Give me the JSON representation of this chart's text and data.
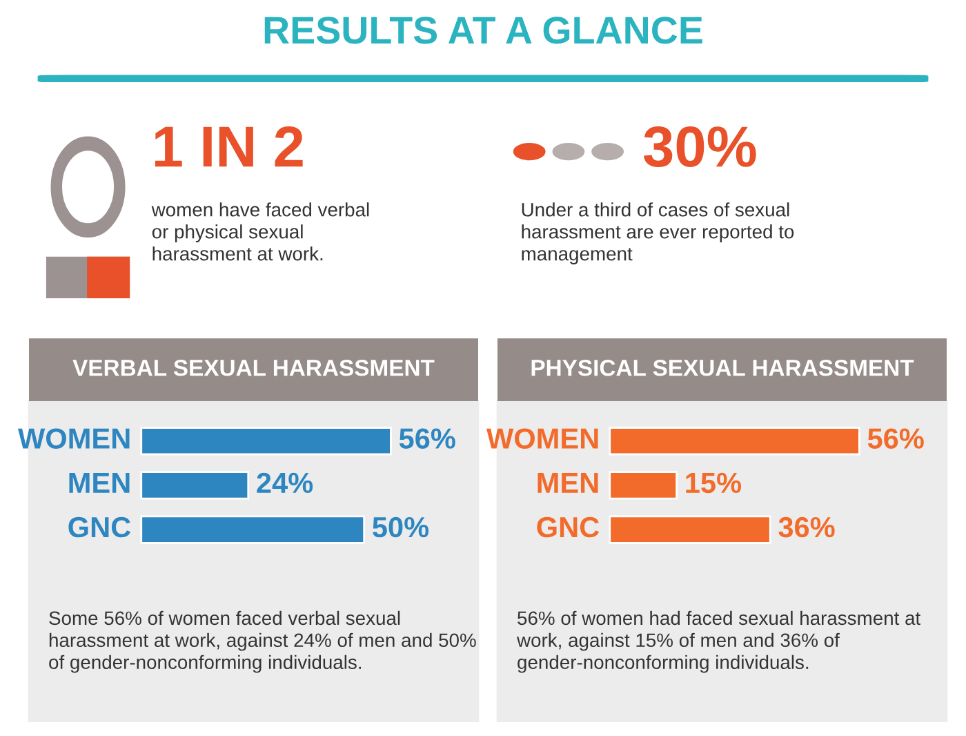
{
  "chart_data": [
    {
      "type": "other",
      "title": "RESULTS AT A GLANCE"
    },
    {
      "type": "other",
      "title": "1 IN 2",
      "annotations": [
        "women have faced verbal\nor physical sexual\nharassment at work."
      ]
    },
    {
      "type": "other",
      "title": "30%",
      "annotations": [
        "Under a third of cases of sexual\nharassment are ever reported to\nmanagement"
      ]
    },
    {
      "type": "bar",
      "orientation": "horizontal",
      "title": "VERBAL SEXUAL HARASSMENT",
      "categories": [
        "WOMEN",
        "MEN",
        "GNC"
      ],
      "series": [
        {
          "color": "#2e86c1",
          "values": [
            56,
            24,
            50
          ],
          "value_labels": [
            "56%",
            "24%",
            "50%"
          ]
        }
      ],
      "annotations": [
        "Some 56% of women faced verbal sexual\nharassment at work, against 24% of men and 50%\nof gender-nonconforming individuals."
      ]
    },
    {
      "type": "bar",
      "orientation": "horizontal",
      "title": "PHYSICAL SEXUAL HARASSMENT",
      "categories": [
        "WOMEN",
        "MEN",
        "GNC"
      ],
      "series": [
        {
          "color": "#f26b2a",
          "values": [
            56,
            15,
            36
          ],
          "value_labels": [
            "56%",
            "15%",
            "36%"
          ]
        }
      ],
      "annotations": [
        "56% of women had faced sexual harassment at\nwork, against 15% of men and 36% of\ngender-nonconforming individuals."
      ]
    }
  ]
}
